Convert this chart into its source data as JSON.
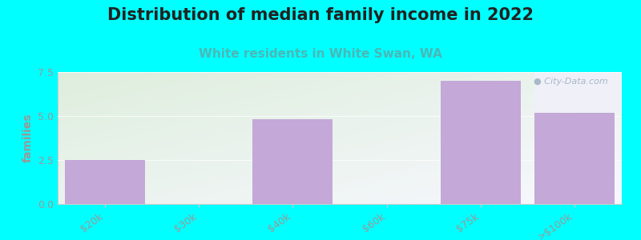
{
  "title": "Distribution of median family income in 2022",
  "subtitle": "White residents in White Swan, WA",
  "categories": [
    "$20k",
    "$30k",
    "$40k",
    "$60k",
    "$75k",
    ">$100k"
  ],
  "values": [
    2.5,
    0,
    4.8,
    0,
    7.0,
    5.2
  ],
  "bar_color": "#c4a8d8",
  "ylabel": "families",
  "ylim": [
    0,
    7.5
  ],
  "yticks": [
    0,
    2.5,
    5,
    7.5
  ],
  "background_color": "#00ffff",
  "plot_bg_color_tl": "#deeedd",
  "plot_bg_color_br": "#f8f8ff",
  "watermark_area_color": "#f0f0f8",
  "title_fontsize": 15,
  "subtitle_fontsize": 11,
  "subtitle_color": "#4ab8b8",
  "title_color": "#222222",
  "tick_color": "#999999",
  "axis_color": "#cccccc",
  "bar_positions": [
    0,
    1,
    2,
    3,
    4,
    5
  ],
  "bar_width": 0.85
}
